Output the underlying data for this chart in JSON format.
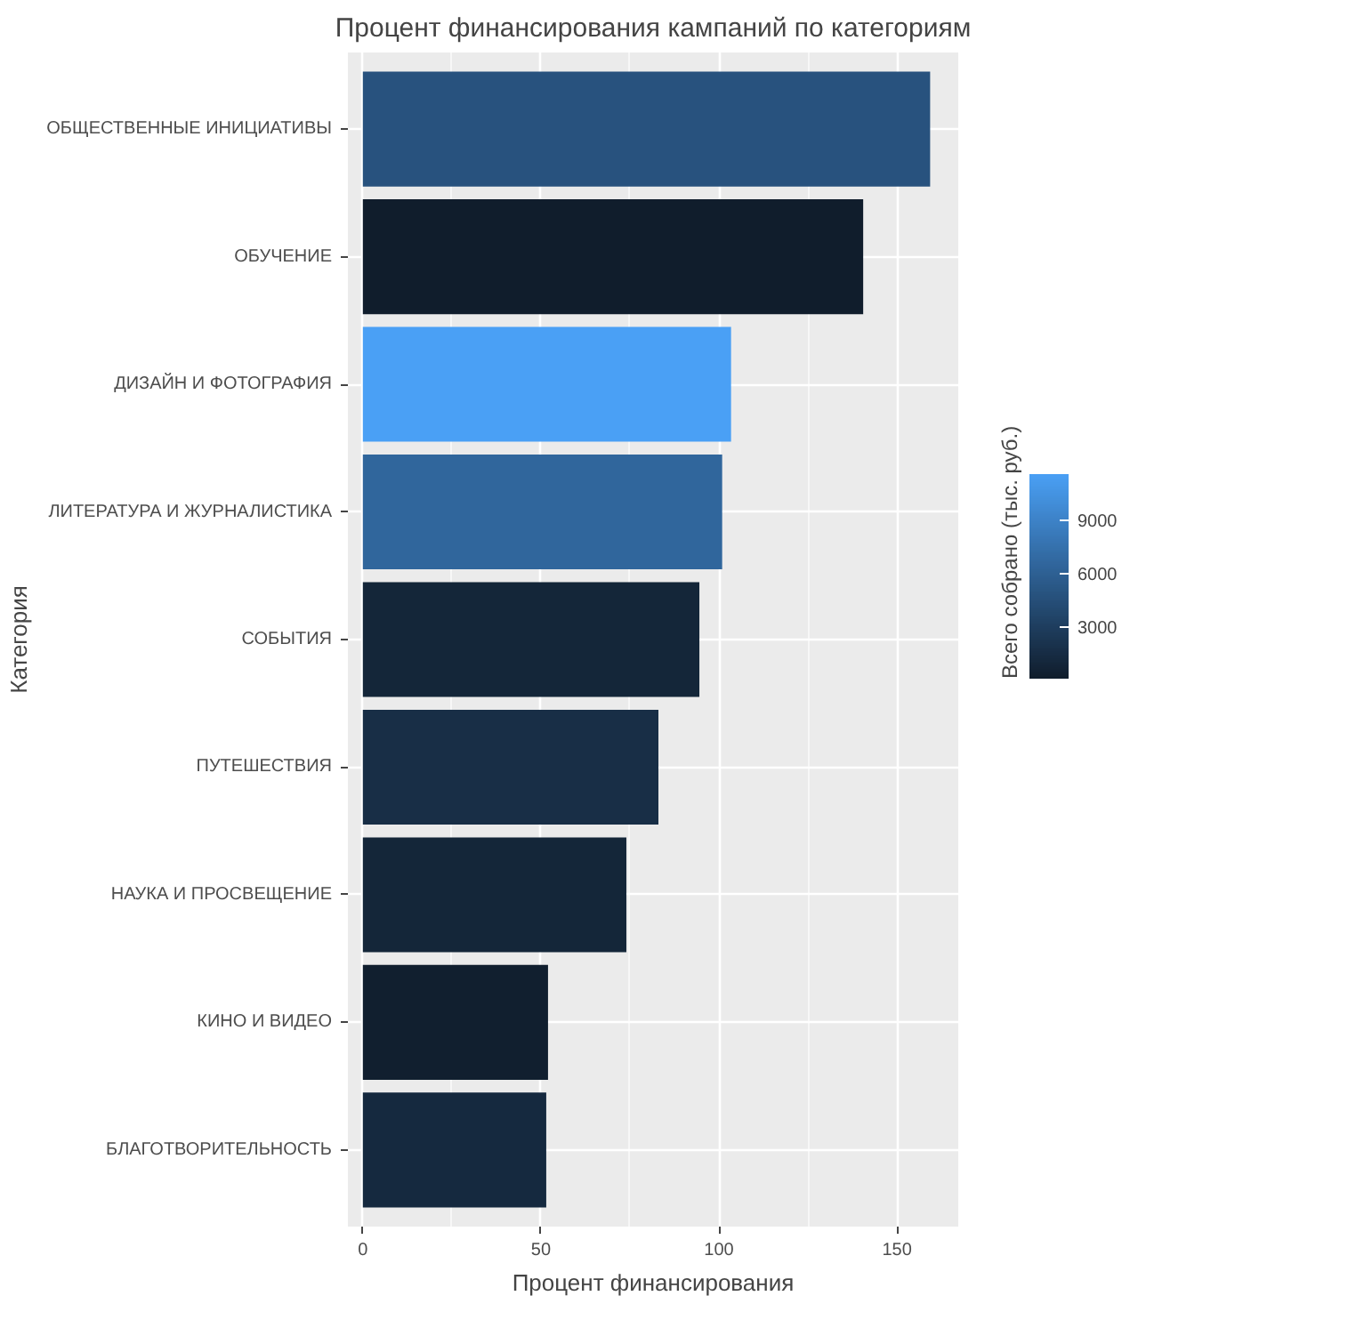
{
  "chart_data": {
    "type": "bar",
    "orientation": "horizontal",
    "title": "Процент финансирования кампаний по категориям",
    "xlabel": "Процент финансирования",
    "ylabel": "Категория",
    "clabel": "Всего собрано (тыс. руб.)",
    "categories": [
      "ОБЩЕСТВЕННЫЕ ИНИЦИАТИВЫ",
      "ОБУЧЕНИЕ",
      "ДИЗАЙН И ФОТОГРАФИЯ",
      "ЛИТЕРАТУРА И ЖУРНАЛИСТИКА",
      "СОБЫТИЯ",
      "ПУТЕШЕСТВИЯ",
      "НАУКА И ПРОСВЕЩЕНИЕ",
      "КИНО И ВИДЕО",
      "БЛАГОТВОРИТЕЛЬНОСТЬ"
    ],
    "values": [
      159.3,
      140.5,
      103.4,
      100.9,
      94.5,
      83.0,
      74.0,
      52.0,
      51.5
    ],
    "cvalues": [
      4800,
      100,
      11600,
      6500,
      900,
      1600,
      900,
      300,
      1200
    ],
    "clim": [
      100,
      11600
    ],
    "cticks": [
      3000,
      6000,
      9000
    ],
    "xlim": [
      -4.2,
      167.2
    ],
    "xticks": [
      0,
      50,
      100,
      150
    ],
    "grid": true
  }
}
